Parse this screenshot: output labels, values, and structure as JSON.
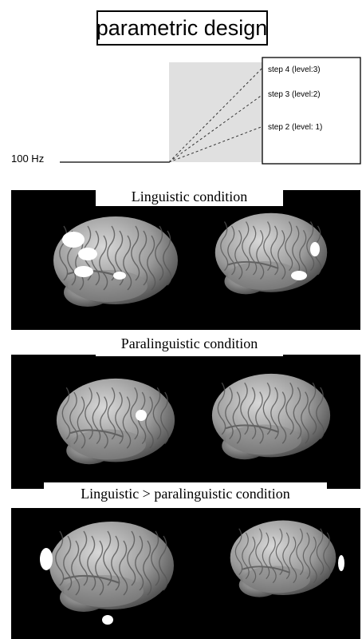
{
  "header": {
    "title": "parametric design"
  },
  "diagram": {
    "baseline_label": "100 Hz",
    "steps": [
      "step 4 (level:3)",
      "step 3 (level:2)",
      "step 2 (level: 1)"
    ]
  },
  "panels": [
    {
      "title": "Linguistic condition"
    },
    {
      "title": "Paralinguistic condition"
    },
    {
      "title": "Linguistic > paralinguistic condition"
    }
  ]
}
